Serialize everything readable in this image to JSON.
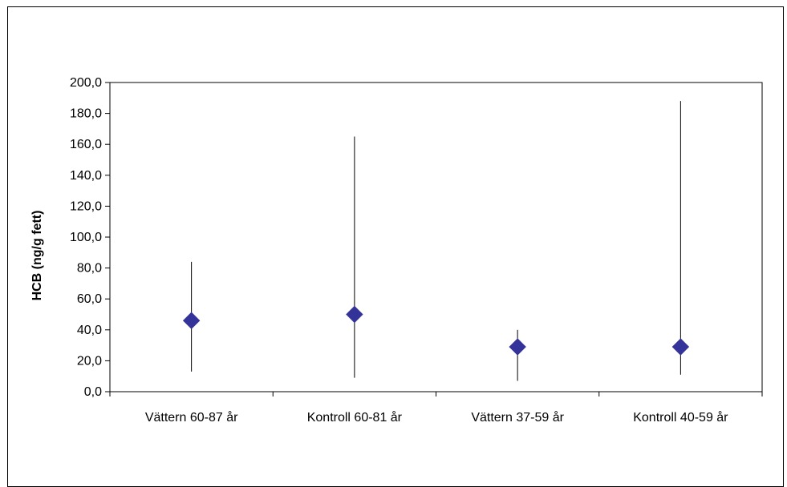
{
  "chart_data": {
    "type": "scatter",
    "title": "",
    "xlabel": "",
    "ylabel": "HCB (ng/g fett)",
    "ylim": [
      0,
      200
    ],
    "yticks": [
      "0,0",
      "20,0",
      "40,0",
      "60,0",
      "80,0",
      "100,0",
      "120,0",
      "140,0",
      "160,0",
      "180,0",
      "200,0"
    ],
    "grid": false,
    "legend": "none",
    "categories": [
      "Vättern 60-87 år",
      "Kontroll 60-81 år",
      "Vättern 37-59 år",
      "Kontroll 40-59 år"
    ],
    "series": [
      {
        "values": [
          46,
          50,
          29,
          29
        ],
        "range_low": [
          13,
          9,
          7,
          11
        ],
        "range_high": [
          84,
          165,
          40,
          188
        ],
        "marker": "diamond",
        "color": "#333399"
      }
    ]
  }
}
